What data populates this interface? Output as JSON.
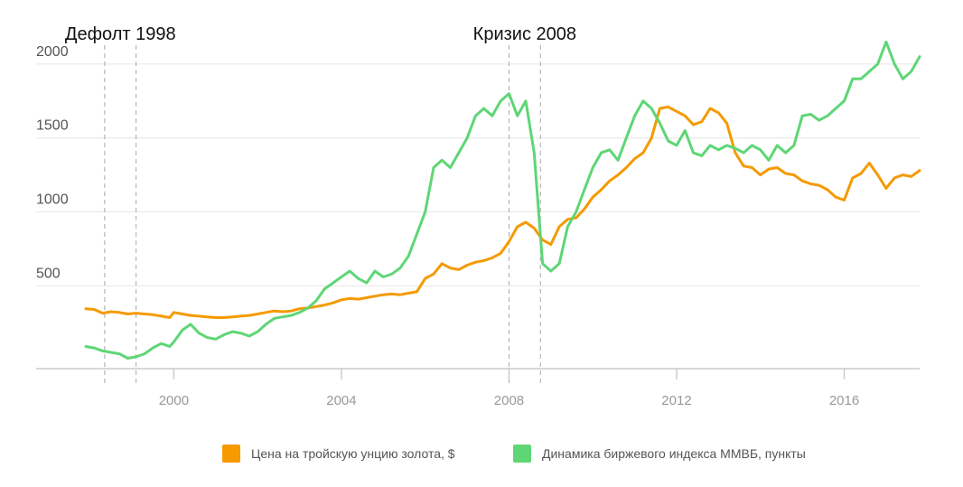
{
  "chart_data": {
    "type": "line",
    "title": "",
    "xlabel": "",
    "ylabel": "",
    "xlim": [
      1997.9,
      2017.8
    ],
    "ylim": [
      -60,
      2250
    ],
    "x_ticks": [
      2000,
      2004,
      2008,
      2012,
      2016
    ],
    "x_tick_labels": [
      "2000",
      "2004",
      "2008",
      "2012",
      "2016"
    ],
    "y_ticks": [
      500,
      1000,
      1500,
      2000
    ],
    "y_tick_labels": [
      "500",
      "1000",
      "1500",
      "2000"
    ],
    "grid": "horizontal",
    "legend_position": "bottom",
    "events": [
      {
        "label": "Дефолт 1998",
        "start": 1998.35,
        "end": 1999.1
      },
      {
        "label": "Кризис 2008",
        "start": 2008.0,
        "end": 2008.75
      }
    ],
    "series": [
      {
        "name": "Цена на тройскую унцию золота, $",
        "color": "#f59a00",
        "x": [
          1997.9,
          1998.1,
          1998.3,
          1998.5,
          1998.7,
          1998.9,
          1999.1,
          1999.3,
          1999.5,
          1999.7,
          1999.9,
          2000.0,
          2000.2,
          2000.4,
          2000.6,
          2000.8,
          2001.0,
          2001.2,
          2001.4,
          2001.6,
          2001.8,
          2002.0,
          2002.2,
          2002.4,
          2002.6,
          2002.8,
          2003.0,
          2003.2,
          2003.4,
          2003.6,
          2003.8,
          2004.0,
          2004.2,
          2004.4,
          2004.6,
          2004.8,
          2005.0,
          2005.2,
          2005.4,
          2005.6,
          2005.8,
          2006.0,
          2006.2,
          2006.4,
          2006.6,
          2006.8,
          2007.0,
          2007.2,
          2007.4,
          2007.6,
          2007.8,
          2008.0,
          2008.2,
          2008.4,
          2008.6,
          2008.8,
          2009.0,
          2009.2,
          2009.4,
          2009.6,
          2009.8,
          2010.0,
          2010.2,
          2010.4,
          2010.6,
          2010.8,
          2011.0,
          2011.2,
          2011.4,
          2011.6,
          2011.8,
          2012.0,
          2012.2,
          2012.4,
          2012.6,
          2012.8,
          2013.0,
          2013.2,
          2013.4,
          2013.6,
          2013.8,
          2014.0,
          2014.2,
          2014.4,
          2014.6,
          2014.8,
          2015.0,
          2015.2,
          2015.4,
          2015.6,
          2015.8,
          2016.0,
          2016.2,
          2016.4,
          2016.6,
          2016.8,
          2017.0,
          2017.2,
          2017.4,
          2017.6,
          2017.8
        ],
        "y": [
          345,
          340,
          315,
          325,
          320,
          310,
          315,
          310,
          305,
          295,
          285,
          320,
          310,
          300,
          295,
          290,
          285,
          285,
          290,
          295,
          300,
          310,
          320,
          330,
          325,
          330,
          345,
          350,
          360,
          370,
          385,
          405,
          415,
          410,
          420,
          430,
          440,
          445,
          440,
          450,
          460,
          550,
          580,
          650,
          620,
          610,
          640,
          660,
          670,
          690,
          720,
          800,
          900,
          930,
          890,
          810,
          780,
          900,
          950,
          960,
          1020,
          1100,
          1150,
          1210,
          1250,
          1300,
          1360,
          1400,
          1500,
          1700,
          1710,
          1680,
          1650,
          1590,
          1610,
          1700,
          1670,
          1600,
          1400,
          1310,
          1300,
          1250,
          1290,
          1300,
          1260,
          1250,
          1210,
          1190,
          1180,
          1150,
          1100,
          1080,
          1230,
          1260,
          1330,
          1250,
          1160,
          1230,
          1250,
          1240,
          1280
        ]
      },
      {
        "name": "Динамика биржевого индекса ММВБ, пункты",
        "color": "#5ed676",
        "x": [
          1997.9,
          1998.1,
          1998.3,
          1998.5,
          1998.7,
          1998.9,
          1999.1,
          1999.3,
          1999.5,
          1999.7,
          1999.9,
          2000.0,
          2000.2,
          2000.4,
          2000.6,
          2000.8,
          2001.0,
          2001.2,
          2001.4,
          2001.6,
          2001.8,
          2002.0,
          2002.2,
          2002.4,
          2002.6,
          2002.8,
          2003.0,
          2003.2,
          2003.4,
          2003.6,
          2003.8,
          2004.0,
          2004.2,
          2004.4,
          2004.6,
          2004.8,
          2005.0,
          2005.2,
          2005.4,
          2005.6,
          2005.8,
          2006.0,
          2006.2,
          2006.4,
          2006.6,
          2006.8,
          2007.0,
          2007.2,
          2007.4,
          2007.6,
          2007.8,
          2008.0,
          2008.2,
          2008.4,
          2008.6,
          2008.8,
          2009.0,
          2009.2,
          2009.4,
          2009.6,
          2009.8,
          2010.0,
          2010.2,
          2010.4,
          2010.6,
          2010.8,
          2011.0,
          2011.2,
          2011.4,
          2011.6,
          2011.8,
          2012.0,
          2012.2,
          2012.4,
          2012.6,
          2012.8,
          2013.0,
          2013.2,
          2013.4,
          2013.6,
          2013.8,
          2014.0,
          2014.2,
          2014.4,
          2014.6,
          2014.8,
          2015.0,
          2015.2,
          2015.4,
          2015.6,
          2015.8,
          2016.0,
          2016.2,
          2016.4,
          2016.6,
          2016.8,
          2017.0,
          2017.2,
          2017.4,
          2017.6,
          2017.8
        ],
        "y": [
          90,
          80,
          60,
          50,
          40,
          10,
          20,
          40,
          80,
          110,
          90,
          120,
          200,
          240,
          180,
          150,
          140,
          170,
          190,
          180,
          160,
          190,
          240,
          280,
          290,
          300,
          320,
          350,
          400,
          480,
          520,
          560,
          600,
          550,
          520,
          600,
          560,
          580,
          620,
          700,
          850,
          1000,
          1300,
          1350,
          1300,
          1400,
          1500,
          1650,
          1700,
          1650,
          1750,
          1800,
          1650,
          1750,
          1400,
          650,
          600,
          650,
          900,
          1000,
          1150,
          1300,
          1400,
          1420,
          1350,
          1500,
          1650,
          1750,
          1700,
          1600,
          1480,
          1450,
          1550,
          1400,
          1380,
          1450,
          1420,
          1450,
          1430,
          1400,
          1450,
          1420,
          1350,
          1450,
          1400,
          1450,
          1650,
          1660,
          1620,
          1650,
          1700,
          1750,
          1900,
          1900,
          1950,
          2000,
          2150,
          2000,
          1900,
          1950,
          2050
        ]
      }
    ]
  }
}
